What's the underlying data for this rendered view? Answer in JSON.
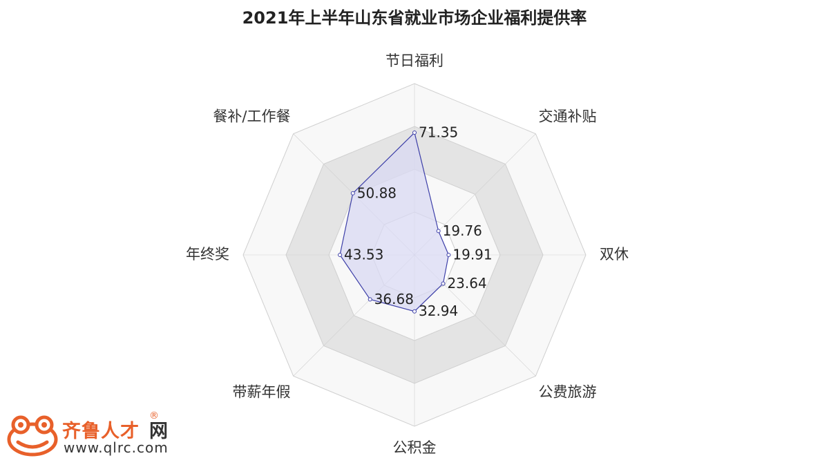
{
  "chart_data": {
    "type": "radar",
    "title": "2021年上半年山东省就业市场企业福利提供率",
    "categories": [
      "节日福利",
      "交通补贴",
      "双休",
      "公费旅游",
      "公积金",
      "带薪年假",
      "年终奖",
      "餐补/工作餐"
    ],
    "series": [
      {
        "values": [
          71.35,
          19.76,
          19.91,
          23.64,
          32.94,
          36.68,
          43.53,
          50.88
        ]
      }
    ],
    "value_labels": [
      "71.35",
      "19.76",
      "19.91",
      "23.64",
      "32.94",
      "36.68",
      "43.53",
      "50.88"
    ],
    "rmax": 100,
    "rings": [
      25,
      50,
      75,
      100
    ],
    "legend": "none",
    "colors": {
      "series_line": "#3d3fa8",
      "series_fill": "#d9daf3",
      "ring_light": "#f8f8f8",
      "ring_dark": "#e4e4e4",
      "grid_line": "#cfcfcf"
    }
  },
  "logo": {
    "name": "齐鲁人才",
    "suffix": "网",
    "reg": "®",
    "url": "www.qlrc.com",
    "colors": {
      "brand": "#e8602a"
    }
  }
}
